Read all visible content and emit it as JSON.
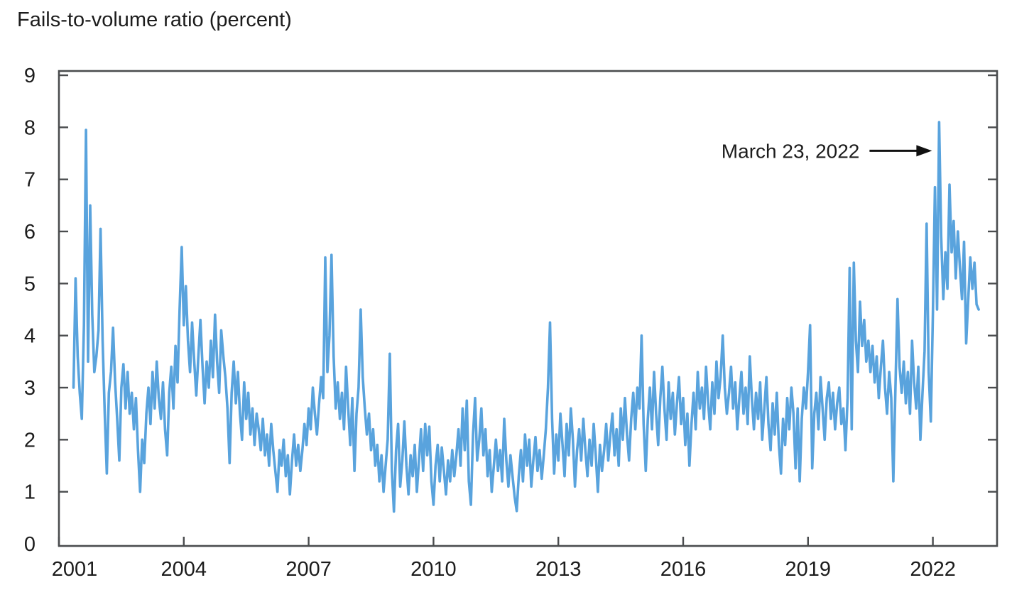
{
  "chart_data": {
    "type": "line",
    "title": "Fails-to-volume ratio (percent)",
    "xlabel": "",
    "ylabel": "Fails-to-volume ratio (percent)",
    "grid": false,
    "legend": "none",
    "ylim": [
      0,
      9
    ],
    "xlim": [
      2001,
      2023.5
    ],
    "colors": {
      "line": "#59a3dd",
      "axis": "#4a4c4e",
      "text": "#1c1c1c"
    },
    "y_axis": {
      "ticks": [
        0,
        1,
        2,
        3,
        4,
        5,
        6,
        7,
        8,
        9
      ]
    },
    "x_axis": {
      "ticks": [
        2001,
        2004,
        2007,
        2010,
        2013,
        2016,
        2019,
        2022
      ]
    },
    "annotation": {
      "text": "March 23, 2022",
      "points_to": {
        "x": 2022.15,
        "y": 7.55
      }
    },
    "series": {
      "name": "Fails-to-volume ratio (percent, weekly)",
      "x_start": 2001.35,
      "x_step": 0.05,
      "values": [
        3.0,
        5.1,
        3.6,
        2.9,
        2.4,
        4.2,
        7.95,
        3.5,
        6.5,
        4.4,
        3.3,
        3.6,
        4.1,
        6.05,
        3.9,
        2.5,
        1.35,
        2.9,
        3.3,
        4.15,
        3.1,
        2.4,
        1.6,
        3.0,
        3.45,
        2.6,
        3.3,
        2.5,
        2.9,
        2.2,
        2.8,
        1.8,
        1.0,
        2.0,
        1.55,
        2.5,
        3.0,
        2.3,
        3.3,
        2.6,
        3.5,
        2.8,
        2.4,
        3.1,
        2.2,
        1.7,
        2.9,
        3.4,
        2.6,
        3.8,
        3.1,
        4.5,
        5.7,
        4.2,
        4.95,
        3.9,
        3.3,
        4.25,
        3.5,
        2.85,
        3.6,
        4.3,
        3.4,
        2.7,
        3.5,
        3.0,
        3.9,
        3.2,
        4.4,
        3.5,
        2.9,
        4.1,
        3.6,
        3.2,
        2.6,
        1.55,
        2.9,
        3.5,
        2.7,
        3.3,
        2.5,
        2.0,
        3.1,
        2.4,
        2.9,
        2.1,
        2.6,
        1.9,
        2.5,
        2.2,
        1.8,
        2.4,
        1.7,
        2.1,
        1.5,
        2.3,
        1.8,
        1.4,
        1.0,
        1.8,
        1.5,
        2.0,
        1.3,
        1.7,
        0.95,
        1.6,
        2.1,
        1.5,
        1.9,
        1.4,
        1.8,
        2.3,
        1.9,
        2.6,
        2.2,
        3.0,
        2.5,
        2.1,
        2.7,
        3.2,
        2.8,
        5.5,
        3.3,
        4.0,
        5.55,
        3.6,
        2.6,
        3.1,
        2.4,
        2.9,
        2.2,
        3.4,
        2.6,
        1.9,
        2.8,
        1.4,
        2.5,
        3.0,
        4.5,
        3.2,
        2.6,
        2.1,
        2.5,
        1.8,
        2.2,
        1.5,
        1.9,
        1.2,
        1.7,
        1.0,
        1.5,
        2.0,
        3.65,
        1.4,
        0.62,
        1.8,
        2.3,
        1.1,
        1.6,
        2.35,
        1.5,
        0.95,
        1.7,
        1.3,
        1.9,
        1.0,
        1.6,
        2.2,
        1.4,
        2.3,
        1.7,
        2.25,
        1.2,
        0.75,
        1.5,
        1.9,
        1.2,
        1.85,
        1.4,
        0.95,
        1.6,
        1.2,
        1.8,
        1.3,
        1.7,
        2.2,
        1.5,
        2.6,
        1.8,
        2.75,
        1.2,
        0.75,
        2.1,
        2.8,
        1.6,
        2.0,
        2.6,
        1.7,
        2.2,
        1.3,
        1.8,
        1.0,
        1.5,
        2.0,
        1.4,
        1.8,
        1.2,
        2.4,
        1.6,
        1.1,
        1.7,
        1.3,
        0.9,
        0.63,
        1.3,
        1.8,
        1.2,
        2.1,
        1.5,
        2.0,
        1.1,
        1.6,
        2.05,
        1.4,
        1.8,
        1.25,
        1.7,
        2.2,
        3.0,
        4.25,
        2.4,
        1.35,
        2.1,
        1.6,
        2.5,
        1.9,
        1.3,
        2.3,
        1.7,
        2.6,
        2.0,
        1.1,
        1.8,
        2.2,
        1.6,
        2.4,
        1.8,
        1.3,
        2.0,
        1.5,
        2.3,
        1.7,
        1.0,
        1.9,
        1.4,
        1.8,
        2.3,
        1.6,
        2.1,
        2.5,
        1.7,
        2.2,
        1.5,
        2.6,
        2.0,
        2.8,
        2.1,
        1.6,
        2.4,
        2.9,
        2.2,
        3.0,
        2.6,
        4.0,
        2.3,
        1.4,
        2.4,
        3.0,
        2.2,
        3.3,
        2.5,
        1.9,
        2.8,
        3.4,
        2.6,
        2.0,
        3.1,
        2.4,
        2.9,
        2.1,
        2.7,
        3.2,
        2.3,
        2.8,
        1.9,
        2.5,
        1.5,
        2.3,
        2.9,
        2.2,
        3.3,
        2.6,
        3.0,
        2.4,
        3.4,
        2.7,
        2.2,
        3.1,
        2.5,
        3.5,
        2.8,
        3.2,
        4.0,
        3.0,
        2.5,
        2.9,
        3.4,
        2.6,
        3.1,
        2.2,
        2.8,
        3.3,
        2.5,
        3.0,
        2.3,
        3.6,
        2.8,
        2.2,
        2.9,
        2.4,
        3.1,
        2.0,
        2.6,
        3.2,
        2.3,
        1.8,
        2.7,
        2.1,
        2.9,
        1.9,
        1.35,
        2.4,
        1.9,
        2.8,
        2.2,
        3.0,
        2.5,
        1.45,
        2.6,
        1.2,
        2.4,
        3.0,
        2.6,
        3.3,
        4.2,
        1.45,
        2.5,
        2.9,
        2.2,
        3.2,
        2.6,
        2.0,
        2.8,
        3.1,
        2.4,
        2.9,
        2.2,
        2.7,
        3.0,
        2.3,
        2.6,
        1.8,
        2.8,
        5.3,
        2.2,
        5.4,
        3.9,
        3.3,
        4.65,
        3.8,
        4.3,
        3.5,
        3.9,
        3.3,
        3.8,
        3.1,
        3.6,
        2.8,
        3.4,
        3.9,
        3.0,
        2.5,
        3.3,
        2.8,
        1.2,
        3.0,
        4.7,
        3.4,
        2.9,
        3.5,
        2.7,
        3.3,
        2.5,
        3.9,
        3.1,
        2.6,
        3.4,
        2.0,
        2.9,
        3.7,
        6.15,
        3.3,
        2.35,
        4.4,
        6.85,
        4.5,
        8.1,
        5.9,
        4.7,
        5.6,
        4.9,
        6.9,
        5.6,
        6.2,
        5.1,
        6.0,
        5.3,
        4.7,
        5.8,
        3.85,
        4.7,
        5.5,
        4.9,
        5.4,
        4.6,
        4.5
      ]
    }
  }
}
